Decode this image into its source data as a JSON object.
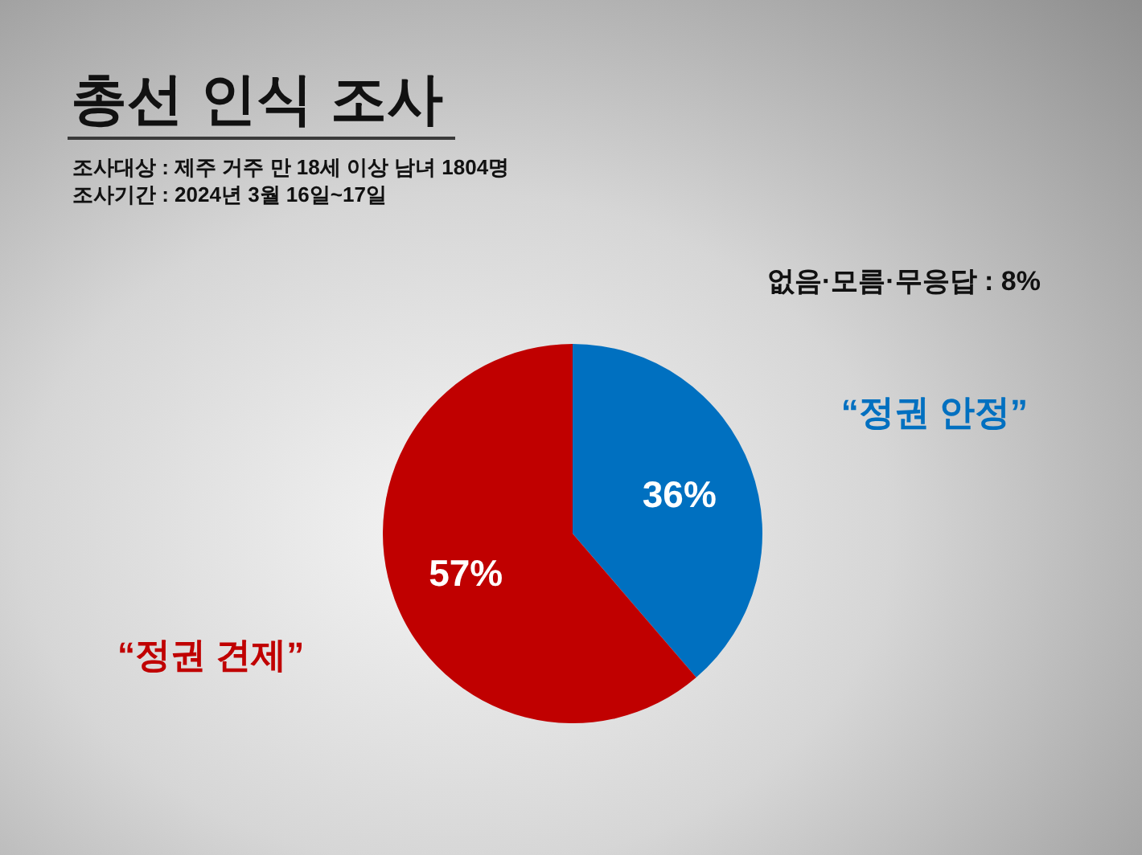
{
  "chart_data": {
    "type": "pie",
    "title": "총선 인식 조사",
    "subtitle": "조사대상 : 제주 거주 만 18세 이상 남녀 1804명",
    "annotations": [
      "조사기간 : 2024년 3월 16일~17일",
      "없음·모름·무응답 : 8%"
    ],
    "categories": [
      "“정권 안정”",
      "“정권 견제”"
    ],
    "values": [
      36,
      57
    ],
    "colors": [
      "#0070c0",
      "#c00000"
    ],
    "value_labels": [
      "36%",
      "57%"
    ]
  }
}
